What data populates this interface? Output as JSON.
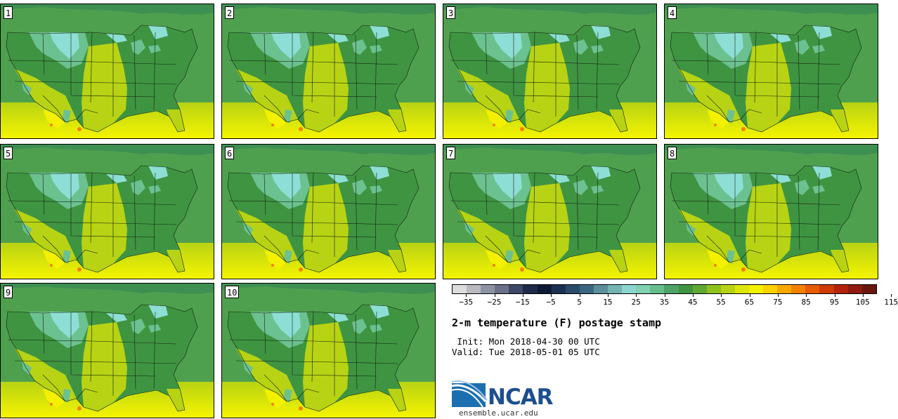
{
  "figure": {
    "title": "2-m temperature (F) postage stamp",
    "init": " Init: Mon 2018-04-30 00 UTC",
    "valid": "Valid: Tue 2018-05-01 05 UTC",
    "logo_text": "NCAR",
    "url": "ensemble.ucar.edu"
  },
  "members": [
    "1",
    "2",
    "3",
    "4",
    "5",
    "6",
    "7",
    "8",
    "9",
    "10"
  ],
  "colorbar": {
    "tick_labels": [
      "-35",
      "-25",
      "-15",
      "-5",
      "5",
      "15",
      "25",
      "35",
      "45",
      "55",
      "65",
      "75",
      "85",
      "95",
      "105",
      "115"
    ],
    "colors": [
      "#dcdcdc",
      "#b9b9c1",
      "#8e93a4",
      "#6b7088",
      "#3e4866",
      "#1d2a4a",
      "#0d1a35",
      "#1b3152",
      "#2b4b6b",
      "#3d6680",
      "#5a8f99",
      "#74b4b3",
      "#8cd6cd",
      "#7fd1b0",
      "#66bf8a",
      "#4ea466",
      "#3f9442",
      "#5fa834",
      "#8fc21d",
      "#b8d313",
      "#dde70a",
      "#f3f100",
      "#fbd100",
      "#f9a800",
      "#f38100",
      "#e65a00",
      "#cf3a07",
      "#b3230a",
      "#8f1a10",
      "#6a1710"
    ]
  },
  "map_colors": {
    "ocean_north": "#4fa04e",
    "ocean_south": "#f5f400",
    "cold": "#8ddfd5",
    "cool": "#6cc190",
    "mild": "#3f9442",
    "warm": "#b8d313",
    "hot": "#f3f100",
    "heat": "#f38100"
  }
}
